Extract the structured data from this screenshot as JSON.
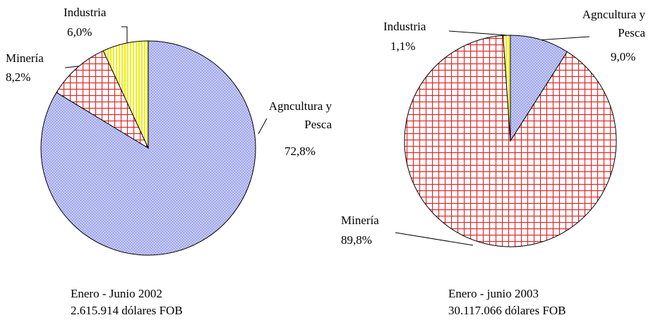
{
  "chart_data": [
    {
      "type": "pie",
      "categories": [
        "Agncultura y Pesca",
        "Minería",
        "Industria"
      ],
      "values": [
        72.8,
        8.2,
        6.0
      ],
      "value_labels": [
        "72,8%",
        "8,2%",
        "6,0%"
      ],
      "colors": [
        "#aab0f0",
        "#e02020",
        "#f0f000"
      ],
      "title": "Enero - Junio 2002",
      "subtitle": "2.615.914 dólares FOB"
    },
    {
      "type": "pie",
      "categories": [
        "Agncultura y Pesca",
        "Minería",
        "Industria"
      ],
      "values": [
        9.0,
        89.8,
        1.1
      ],
      "value_labels": [
        "9,0%",
        "89,8%",
        "1,1%"
      ],
      "colors": [
        "#aab0f0",
        "#e02020",
        "#f0f000"
      ],
      "title": "Enero - junio 2003",
      "subtitle": "30.117.066 dólares FOB"
    }
  ]
}
